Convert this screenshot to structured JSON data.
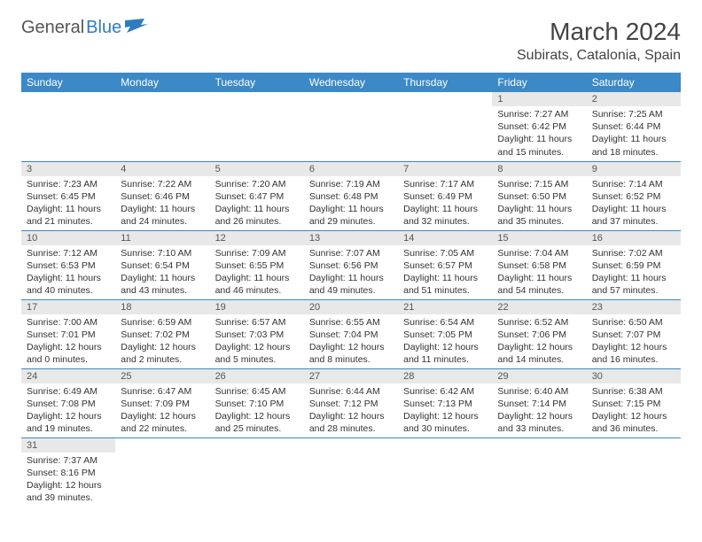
{
  "logo": {
    "general": "General",
    "blue": "Blue"
  },
  "header": {
    "month_title": "March 2024",
    "location": "Subirats, Catalonia, Spain"
  },
  "colors": {
    "header_bg": "#3b89c7",
    "header_text": "#ffffff",
    "daynum_bg": "#e8e8e8",
    "cell_border": "#3b89c7",
    "text": "#333333"
  },
  "weekdays": [
    "Sunday",
    "Monday",
    "Tuesday",
    "Wednesday",
    "Thursday",
    "Friday",
    "Saturday"
  ],
  "weeks": [
    [
      null,
      null,
      null,
      null,
      null,
      {
        "num": "1",
        "sunrise": "Sunrise: 7:27 AM",
        "sunset": "Sunset: 6:42 PM",
        "daylight": "Daylight: 11 hours and 15 minutes."
      },
      {
        "num": "2",
        "sunrise": "Sunrise: 7:25 AM",
        "sunset": "Sunset: 6:44 PM",
        "daylight": "Daylight: 11 hours and 18 minutes."
      }
    ],
    [
      {
        "num": "3",
        "sunrise": "Sunrise: 7:23 AM",
        "sunset": "Sunset: 6:45 PM",
        "daylight": "Daylight: 11 hours and 21 minutes."
      },
      {
        "num": "4",
        "sunrise": "Sunrise: 7:22 AM",
        "sunset": "Sunset: 6:46 PM",
        "daylight": "Daylight: 11 hours and 24 minutes."
      },
      {
        "num": "5",
        "sunrise": "Sunrise: 7:20 AM",
        "sunset": "Sunset: 6:47 PM",
        "daylight": "Daylight: 11 hours and 26 minutes."
      },
      {
        "num": "6",
        "sunrise": "Sunrise: 7:19 AM",
        "sunset": "Sunset: 6:48 PM",
        "daylight": "Daylight: 11 hours and 29 minutes."
      },
      {
        "num": "7",
        "sunrise": "Sunrise: 7:17 AM",
        "sunset": "Sunset: 6:49 PM",
        "daylight": "Daylight: 11 hours and 32 minutes."
      },
      {
        "num": "8",
        "sunrise": "Sunrise: 7:15 AM",
        "sunset": "Sunset: 6:50 PM",
        "daylight": "Daylight: 11 hours and 35 minutes."
      },
      {
        "num": "9",
        "sunrise": "Sunrise: 7:14 AM",
        "sunset": "Sunset: 6:52 PM",
        "daylight": "Daylight: 11 hours and 37 minutes."
      }
    ],
    [
      {
        "num": "10",
        "sunrise": "Sunrise: 7:12 AM",
        "sunset": "Sunset: 6:53 PM",
        "daylight": "Daylight: 11 hours and 40 minutes."
      },
      {
        "num": "11",
        "sunrise": "Sunrise: 7:10 AM",
        "sunset": "Sunset: 6:54 PM",
        "daylight": "Daylight: 11 hours and 43 minutes."
      },
      {
        "num": "12",
        "sunrise": "Sunrise: 7:09 AM",
        "sunset": "Sunset: 6:55 PM",
        "daylight": "Daylight: 11 hours and 46 minutes."
      },
      {
        "num": "13",
        "sunrise": "Sunrise: 7:07 AM",
        "sunset": "Sunset: 6:56 PM",
        "daylight": "Daylight: 11 hours and 49 minutes."
      },
      {
        "num": "14",
        "sunrise": "Sunrise: 7:05 AM",
        "sunset": "Sunset: 6:57 PM",
        "daylight": "Daylight: 11 hours and 51 minutes."
      },
      {
        "num": "15",
        "sunrise": "Sunrise: 7:04 AM",
        "sunset": "Sunset: 6:58 PM",
        "daylight": "Daylight: 11 hours and 54 minutes."
      },
      {
        "num": "16",
        "sunrise": "Sunrise: 7:02 AM",
        "sunset": "Sunset: 6:59 PM",
        "daylight": "Daylight: 11 hours and 57 minutes."
      }
    ],
    [
      {
        "num": "17",
        "sunrise": "Sunrise: 7:00 AM",
        "sunset": "Sunset: 7:01 PM",
        "daylight": "Daylight: 12 hours and 0 minutes."
      },
      {
        "num": "18",
        "sunrise": "Sunrise: 6:59 AM",
        "sunset": "Sunset: 7:02 PM",
        "daylight": "Daylight: 12 hours and 2 minutes."
      },
      {
        "num": "19",
        "sunrise": "Sunrise: 6:57 AM",
        "sunset": "Sunset: 7:03 PM",
        "daylight": "Daylight: 12 hours and 5 minutes."
      },
      {
        "num": "20",
        "sunrise": "Sunrise: 6:55 AM",
        "sunset": "Sunset: 7:04 PM",
        "daylight": "Daylight: 12 hours and 8 minutes."
      },
      {
        "num": "21",
        "sunrise": "Sunrise: 6:54 AM",
        "sunset": "Sunset: 7:05 PM",
        "daylight": "Daylight: 12 hours and 11 minutes."
      },
      {
        "num": "22",
        "sunrise": "Sunrise: 6:52 AM",
        "sunset": "Sunset: 7:06 PM",
        "daylight": "Daylight: 12 hours and 14 minutes."
      },
      {
        "num": "23",
        "sunrise": "Sunrise: 6:50 AM",
        "sunset": "Sunset: 7:07 PM",
        "daylight": "Daylight: 12 hours and 16 minutes."
      }
    ],
    [
      {
        "num": "24",
        "sunrise": "Sunrise: 6:49 AM",
        "sunset": "Sunset: 7:08 PM",
        "daylight": "Daylight: 12 hours and 19 minutes."
      },
      {
        "num": "25",
        "sunrise": "Sunrise: 6:47 AM",
        "sunset": "Sunset: 7:09 PM",
        "daylight": "Daylight: 12 hours and 22 minutes."
      },
      {
        "num": "26",
        "sunrise": "Sunrise: 6:45 AM",
        "sunset": "Sunset: 7:10 PM",
        "daylight": "Daylight: 12 hours and 25 minutes."
      },
      {
        "num": "27",
        "sunrise": "Sunrise: 6:44 AM",
        "sunset": "Sunset: 7:12 PM",
        "daylight": "Daylight: 12 hours and 28 minutes."
      },
      {
        "num": "28",
        "sunrise": "Sunrise: 6:42 AM",
        "sunset": "Sunset: 7:13 PM",
        "daylight": "Daylight: 12 hours and 30 minutes."
      },
      {
        "num": "29",
        "sunrise": "Sunrise: 6:40 AM",
        "sunset": "Sunset: 7:14 PM",
        "daylight": "Daylight: 12 hours and 33 minutes."
      },
      {
        "num": "30",
        "sunrise": "Sunrise: 6:38 AM",
        "sunset": "Sunset: 7:15 PM",
        "daylight": "Daylight: 12 hours and 36 minutes."
      }
    ],
    [
      {
        "num": "31",
        "sunrise": "Sunrise: 7:37 AM",
        "sunset": "Sunset: 8:16 PM",
        "daylight": "Daylight: 12 hours and 39 minutes."
      },
      null,
      null,
      null,
      null,
      null,
      null
    ]
  ]
}
